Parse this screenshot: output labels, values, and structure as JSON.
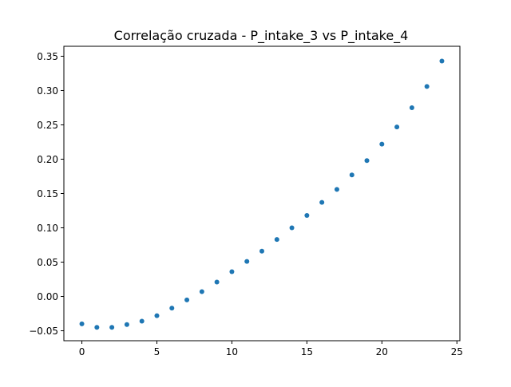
{
  "chart_data": {
    "type": "scatter",
    "title": "Correlação cruzada - P_intake_3 vs P_intake_4",
    "xlabel": "",
    "ylabel": "",
    "xlim": [
      -1.2,
      25.2
    ],
    "ylim": [
      -0.0645,
      0.3645
    ],
    "x_ticks": [
      0,
      5,
      10,
      15,
      20,
      25
    ],
    "x_tick_labels": [
      "0",
      "5",
      "10",
      "15",
      "20",
      "25"
    ],
    "y_ticks": [
      -0.05,
      0.0,
      0.05,
      0.1,
      0.15,
      0.2,
      0.25,
      0.3,
      0.35
    ],
    "y_tick_labels": [
      "−0.05",
      "0.00",
      "0.05",
      "0.10",
      "0.15",
      "0.20",
      "0.25",
      "0.30",
      "0.35"
    ],
    "grid": false,
    "series": [
      {
        "color": "#1f77b4",
        "x": [
          0,
          1,
          2,
          3,
          4,
          5,
          6,
          7,
          8,
          9,
          10,
          11,
          12,
          13,
          14,
          15,
          16,
          17,
          18,
          19,
          20,
          21,
          22,
          23,
          24
        ],
        "y": [
          -0.04,
          -0.045,
          -0.045,
          -0.041,
          -0.036,
          -0.028,
          -0.017,
          -0.005,
          0.007,
          0.021,
          0.036,
          0.051,
          0.066,
          0.083,
          0.1,
          0.118,
          0.137,
          0.156,
          0.177,
          0.198,
          0.222,
          0.247,
          0.275,
          0.306,
          0.343
        ]
      }
    ]
  }
}
